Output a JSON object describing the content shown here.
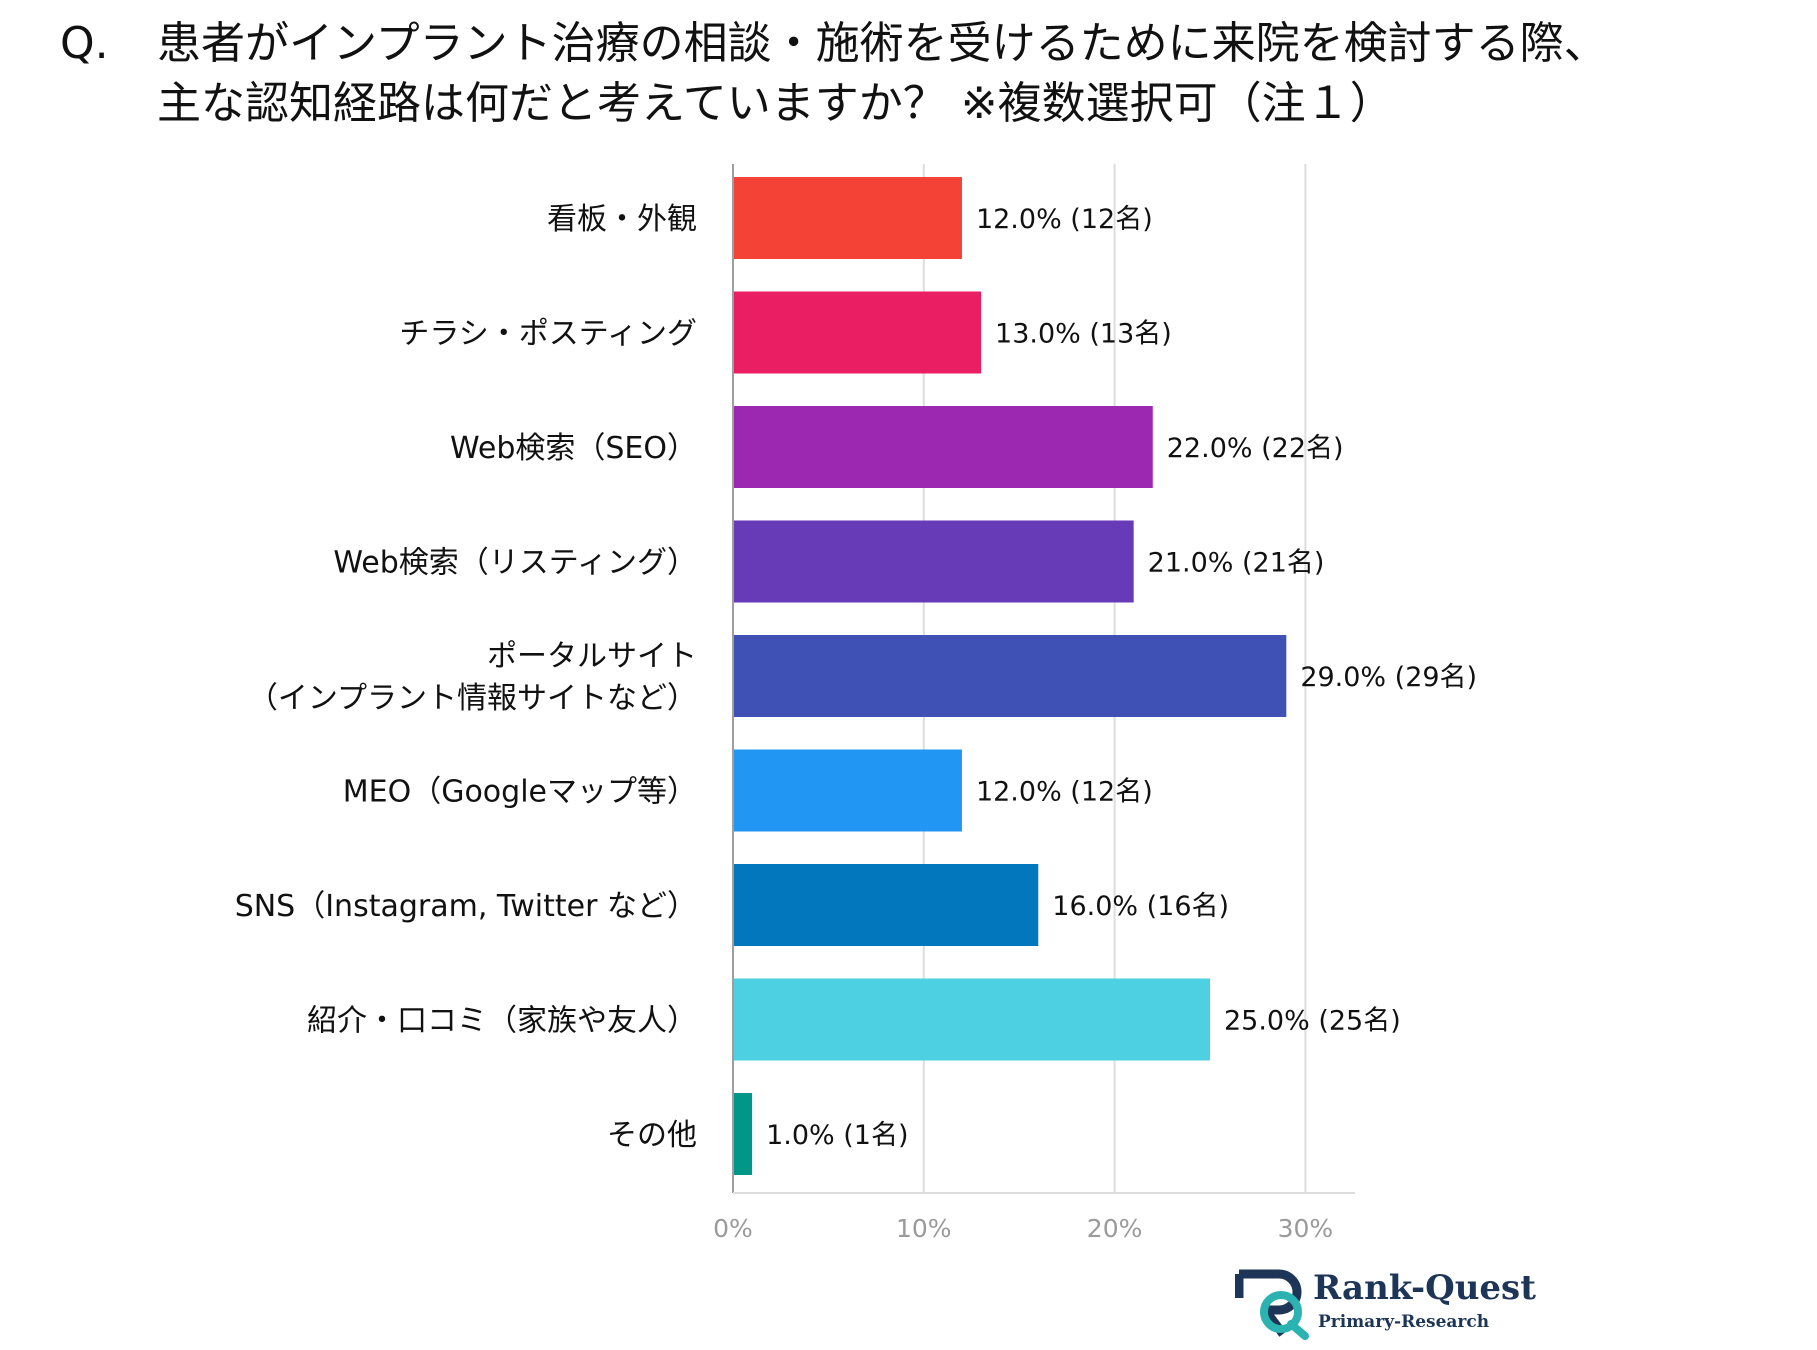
{
  "question": {
    "mark": "Q.",
    "line1": "患者がインプラント治療の相談・施術を受けるために来院を検討する際、",
    "line2": "主な認知経路は何だと考えていますか？ ※複数選択可（注１）"
  },
  "chart_data": {
    "type": "bar",
    "orientation": "horizontal",
    "categories": [
      "看板・外観",
      "チラシ・ポスティング",
      "Web検索（SEO）",
      "Web検索（リスティング）",
      "ポータルサイト\n（インプラント情報サイトなど）",
      "MEO（Googleマップ等）",
      "SNS（Instagram, Twitter など）",
      "紹介・口コミ（家族や友人）",
      "その他"
    ],
    "values": [
      12.0,
      13.0,
      22.0,
      21.0,
      29.0,
      12.0,
      16.0,
      25.0,
      1.0
    ],
    "data_labels": [
      "12.0% (12名)",
      "13.0% (13名)",
      "22.0% (22名)",
      "21.0% (21名)",
      "29.0% (29名)",
      "12.0% (12名)",
      "16.0% (16名)",
      "25.0% (25名)",
      "1.0% (1名)"
    ],
    "colors": [
      "#f44336",
      "#e91e63",
      "#9c27b0",
      "#673ab7",
      "#3f51b5",
      "#2196f3",
      "#0277bd",
      "#4dd0e1",
      "#009688"
    ],
    "x_ticks": [
      0,
      10,
      20,
      30
    ],
    "x_tick_labels": [
      "0%",
      "10%",
      "20%",
      "30%"
    ],
    "xlim": [
      0,
      32.6
    ],
    "grid": true
  },
  "logo": {
    "name": "Rank-Quest",
    "tagline": "Primary-Research",
    "colors": {
      "navy": "#1d3557",
      "teal": "#2bb3b1"
    }
  }
}
